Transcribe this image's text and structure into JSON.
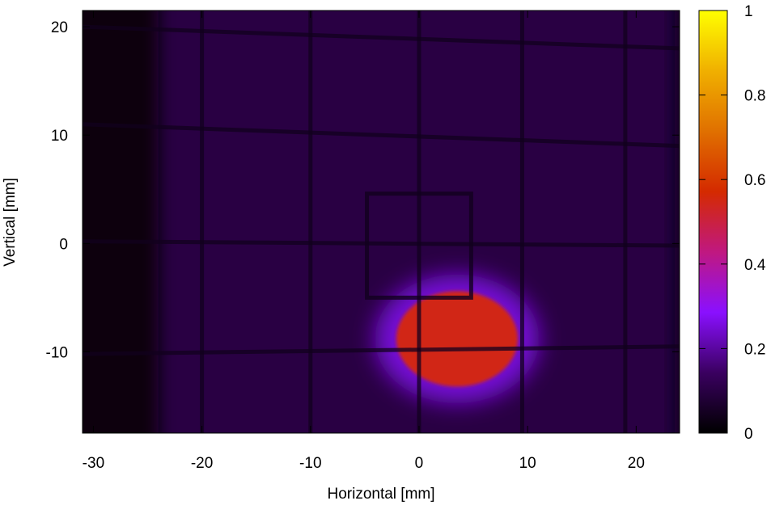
{
  "chart_data": {
    "type": "heatmap",
    "xlabel": "Horizontal [mm]",
    "ylabel": "Vertical [mm]",
    "xlim": [
      -31,
      24
    ],
    "ylim": [
      -17.5,
      21.5
    ],
    "xticks": [
      -30,
      -20,
      -10,
      0,
      10,
      20
    ],
    "yticks": [
      -10,
      0,
      10,
      20
    ],
    "colorbar": {
      "min": 0,
      "max": 1,
      "ticks": [
        0,
        0.2,
        0.4,
        0.6,
        0.8,
        1
      ],
      "tick_labels": [
        "0",
        "0.2",
        "0.4",
        "0.6",
        "0.8",
        "1"
      ],
      "colormap": [
        "#000000",
        "#3a0060",
        "#8a10ff",
        "#c01880",
        "#d42a00",
        "#e07000",
        "#f0b000",
        "#ffff00"
      ]
    },
    "background_level": 0.1,
    "dark_edge": {
      "x_from": -31,
      "x_to": -24,
      "level": 0.02
    },
    "grid_wires": {
      "vertical_x": [
        -20,
        -10,
        0,
        9.5,
        19
      ],
      "horizontal": [
        {
          "y_left": 20,
          "y_right": 18
        },
        {
          "y_left": 11,
          "y_right": 9
        },
        {
          "y_left": 0.2,
          "y_right": -0.2
        },
        {
          "y_left": -10.2,
          "y_right": -9.5
        }
      ]
    },
    "box": {
      "x_min": -4.8,
      "x_max": 4.8,
      "y_min": -5,
      "y_max": 4.6
    },
    "spot": {
      "cx": 3.5,
      "cy": -8.8,
      "rx": 5.6,
      "ry": 4.4,
      "peak": 0.55,
      "halo": 0.25
    }
  }
}
